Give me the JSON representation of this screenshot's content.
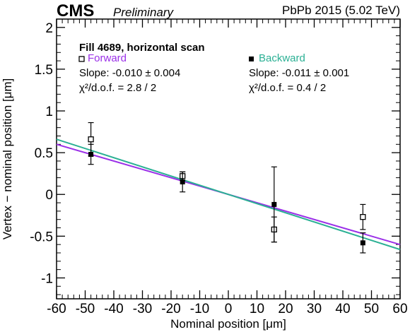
{
  "header": {
    "experiment": "CMS",
    "status": "Preliminary",
    "dataset": "PbPb 2015 (5.02 TeV)"
  },
  "chart_data": {
    "type": "scatter",
    "title": "",
    "xlabel": "Nominal position [μm]",
    "ylabel": "Vertex − nominal position [μm]",
    "xlim": [
      -60,
      60
    ],
    "ylim": [
      -1.25,
      2.1
    ],
    "xticks": [
      -60,
      -50,
      -40,
      -30,
      -20,
      -10,
      0,
      10,
      20,
      30,
      40,
      50,
      60
    ],
    "xtick_labels": [
      "-60",
      "-50",
      "-40",
      "-30",
      "-20",
      "-10",
      "0",
      "10",
      "20",
      "30",
      "40",
      "50",
      "60"
    ],
    "yticks": [
      2,
      1.5,
      1,
      0.5,
      0,
      -0.5,
      -1
    ],
    "ytick_labels": [
      "2",
      "1.5",
      "1",
      "0.5",
      "0",
      "-0.5",
      "-1"
    ],
    "annotation": "Fill 4689, horizontal scan",
    "series": [
      {
        "name": "Forward",
        "marker": "open-square",
        "line_color": "#9b30e8",
        "x": [
          -48,
          -16,
          16,
          47
        ],
        "y": [
          0.66,
          0.22,
          -0.42,
          -0.27
        ],
        "yerr": [
          0.2,
          0.05,
          0.15,
          0.15
        ],
        "slope": "Slope: -0.010 ± 0.004",
        "chi2": "χ²/d.o.f. = 2.8 / 2",
        "fit": [
          0.0,
          -0.01
        ]
      },
      {
        "name": "Backward",
        "marker": "filled-square",
        "line_color": "#2bb094",
        "x": [
          -48,
          -16,
          16,
          47
        ],
        "y": [
          0.48,
          0.15,
          -0.12,
          -0.58
        ],
        "yerr": [
          0.12,
          0.12,
          0.45,
          0.12
        ],
        "slope": "Slope: -0.011 ± 0.001",
        "chi2": "χ²/d.o.f. = 0.4 / 2",
        "fit": [
          0.0,
          -0.011
        ]
      }
    ]
  }
}
